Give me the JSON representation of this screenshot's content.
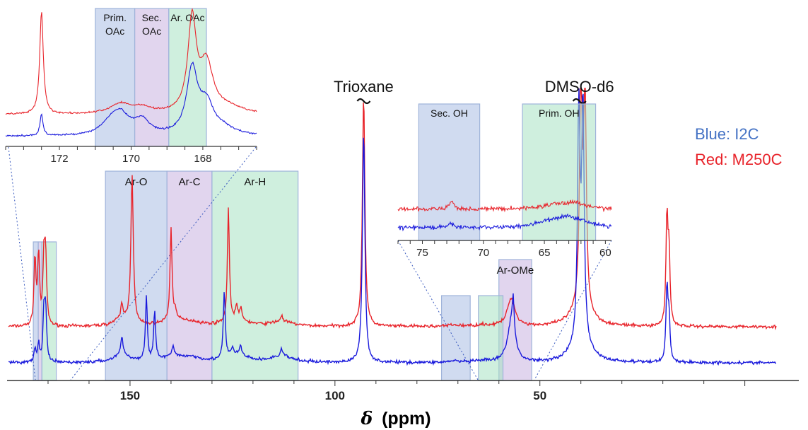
{
  "chart_data": {
    "type": "line",
    "title": "",
    "xlabel_symbol": "δ",
    "xlabel_unit": "(ppm)",
    "x_reversed": true,
    "xlim": [
      180,
      -8
    ],
    "x_ticks": [
      150,
      100,
      50
    ],
    "legend": [
      {
        "label": "Blue: I2C",
        "color": "#4472c4"
      },
      {
        "label": "Red: M250C",
        "color": "#e8232a"
      }
    ],
    "series": [
      {
        "name": "Blue: I2C",
        "color": "#1a1adc"
      },
      {
        "name": "Red: M250C",
        "color": "#e8232a"
      }
    ],
    "peak_labels": [
      {
        "label": "Trioxane",
        "x": 93
      },
      {
        "label": "DMSO-d6",
        "x": 40
      }
    ],
    "regions": [
      {
        "label": "Ar-O",
        "x_from": 156,
        "x_to": 141,
        "color": "#aabde3"
      },
      {
        "label": "Ar-C",
        "x_from": 141,
        "x_to": 130,
        "color": "#c9b2e0"
      },
      {
        "label": "Ar-H",
        "x_from": 130,
        "x_to": 109,
        "color": "#a7e2c3"
      },
      {
        "label": "Ar-OMe",
        "x_from": 60,
        "x_to": 52,
        "color": "#c9b2e0"
      },
      {
        "label": "",
        "x_from": 74,
        "x_to": 67,
        "color": "#aabde3"
      },
      {
        "label": "",
        "x_from": 65,
        "x_to": 59,
        "color": "#a7e2c3"
      },
      {
        "label": "",
        "x_from": 173.6,
        "x_to": 172.4,
        "color": "#aabde3"
      },
      {
        "label": "",
        "x_from": 172.4,
        "x_to": 171.5,
        "color": "#c9b2e0"
      },
      {
        "label": "",
        "x_from": 171.5,
        "x_to": 168,
        "color": "#a7e2c3"
      }
    ],
    "main_peaks": {
      "red": [
        [
          173.2,
          95
        ],
        [
          172.3,
          100
        ],
        [
          171,
          90
        ],
        [
          170.6,
          90
        ],
        [
          152,
          20
        ],
        [
          149.5,
          210
        ],
        [
          140,
          130
        ],
        [
          139,
          14
        ],
        [
          126,
          160
        ],
        [
          124,
          18
        ],
        [
          123,
          16
        ],
        [
          113,
          8
        ],
        [
          93,
          330
        ],
        [
          40,
          330
        ],
        [
          39,
          330
        ],
        [
          19,
          150
        ],
        [
          18.5,
          100
        ]
      ],
      "blue": [
        [
          173.2,
          18
        ],
        [
          172.3,
          25
        ],
        [
          171,
          65
        ],
        [
          170.6,
          70
        ],
        [
          152,
          25
        ],
        [
          146,
          90
        ],
        [
          144,
          70
        ],
        [
          139.5,
          12
        ],
        [
          127,
          95
        ],
        [
          125,
          10
        ],
        [
          123,
          14
        ],
        [
          113,
          10
        ],
        [
          93,
          330
        ],
        [
          56.5,
          50
        ],
        [
          40.5,
          330
        ],
        [
          39.5,
          330
        ],
        [
          19,
          105
        ],
        [
          18.5,
          60
        ]
      ]
    },
    "inset_oac": {
      "xlim": [
        173.5,
        166.5
      ],
      "x_ticks": [
        172,
        170,
        168
      ],
      "regions": [
        {
          "label_lines": [
            "Prim.",
            "OAc"
          ],
          "x_from": 171,
          "x_to": 169.9,
          "color": "#aabde3"
        },
        {
          "label_lines": [
            "Sec.",
            "OAc"
          ],
          "x_from": 169.9,
          "x_to": 168.95,
          "color": "#c9b2e0"
        },
        {
          "label_lines": [
            "Ar. OAc"
          ],
          "x_from": 168.95,
          "x_to": 167.9,
          "color": "#a7e2c3"
        }
      ]
    },
    "inset_oh": {
      "xlim": [
        77,
        59.5
      ],
      "x_ticks": [
        75,
        70,
        65,
        60
      ],
      "regions": [
        {
          "label_lines": [
            "Sec. OH"
          ],
          "x_from": 75.3,
          "x_to": 70.3,
          "color": "#aabde3"
        },
        {
          "label_lines": [
            "Prim. OH"
          ],
          "x_from": 66.8,
          "x_to": 60.8,
          "color": "#a7e2c3"
        }
      ]
    }
  }
}
